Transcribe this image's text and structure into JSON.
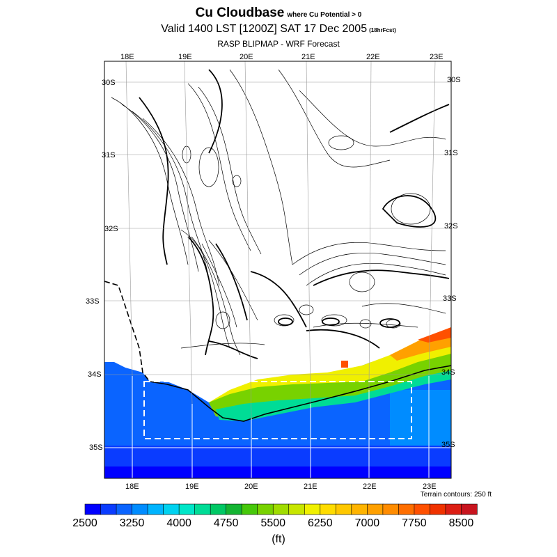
{
  "title": {
    "main": "Cu Cloudbase",
    "qualifier": "where Cu Potential > 0",
    "valid": "Valid 1400 LST [1200Z] SAT 17 Dec 2005",
    "forecast": "(18hrFcst)",
    "subtitle": "RASP BLIPMAP - WRF Forecast"
  },
  "map": {
    "lon_top": [
      "18E",
      "19E",
      "20E",
      "21E",
      "22E",
      "23E"
    ],
    "lon_bottom": [
      "18E",
      "19E",
      "20E",
      "21E",
      "22E",
      "23E"
    ],
    "lat_left": [
      "30S",
      "31S",
      "32S",
      "33S",
      "34S",
      "35S"
    ],
    "lat_right": [
      "30S",
      "31S",
      "32S",
      "33S",
      "34S",
      "35S"
    ],
    "terrain_note": "Terrain contours: 250 ft"
  },
  "colorbar": {
    "units": "(ft)",
    "labels": [
      "2500",
      "3250",
      "4000",
      "4750",
      "5500",
      "6250",
      "7000",
      "7750",
      "8500"
    ],
    "colors": [
      "#0000ff",
      "#0a3cff",
      "#0a64ff",
      "#008cff",
      "#00b4ff",
      "#00d2f0",
      "#00e6c8",
      "#00dc96",
      "#00c864",
      "#14b432",
      "#46c80a",
      "#78d200",
      "#a0dc00",
      "#c8e600",
      "#f0f000",
      "#ffdc00",
      "#ffc800",
      "#ffb400",
      "#ffa000",
      "#ff8c00",
      "#ff6e00",
      "#ff5000",
      "#f03200",
      "#dc1e14",
      "#c8141e"
    ]
  }
}
